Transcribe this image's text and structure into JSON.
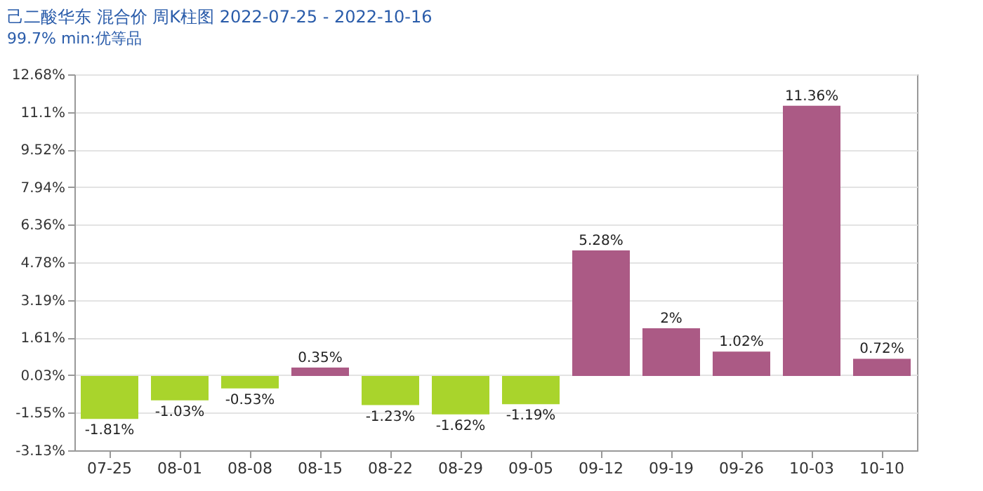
{
  "chart_data": {
    "type": "bar",
    "title": "己二酸华东 混合价 周K柱图 2022-07-25 - 2022-10-16",
    "subtitle": "99.7% min:优等品",
    "categories": [
      "07-25",
      "08-01",
      "08-08",
      "08-15",
      "08-22",
      "08-29",
      "09-05",
      "09-12",
      "09-19",
      "09-26",
      "10-03",
      "10-10"
    ],
    "values": [
      -1.81,
      -1.03,
      -0.53,
      0.35,
      -1.23,
      -1.62,
      -1.19,
      5.28,
      2,
      1.02,
      11.36,
      0.72
    ],
    "value_labels": [
      "-1.81%",
      "-1.03%",
      "-0.53%",
      "0.35%",
      "-1.23%",
      "-1.62%",
      "-1.19%",
      "5.28%",
      "2%",
      "1.02%",
      "11.36%",
      "0.72%"
    ],
    "colors": [
      "#a9d42c",
      "#a9d42c",
      "#a9d42c",
      "#ab5a85",
      "#a9d42c",
      "#a9d42c",
      "#a9d42c",
      "#ab5a85",
      "#ab5a85",
      "#ab5a85",
      "#ab5a85",
      "#ab5a85"
    ],
    "ylim": [
      -3.13,
      12.68
    ],
    "yticks": [
      {
        "value": -3.13,
        "label": "-3.13%"
      },
      {
        "value": -1.55,
        "label": "-1.55%"
      },
      {
        "value": 0.03,
        "label": "0.03%"
      },
      {
        "value": 1.61,
        "label": "1.61%"
      },
      {
        "value": 3.19,
        "label": "3.19%"
      },
      {
        "value": 4.78,
        "label": "4.78%"
      },
      {
        "value": 6.36,
        "label": "6.36%"
      },
      {
        "value": 7.94,
        "label": "7.94%"
      },
      {
        "value": 9.52,
        "label": "9.52%"
      },
      {
        "value": 11.1,
        "label": "11.1%"
      },
      {
        "value": 12.68,
        "label": "12.68%"
      }
    ],
    "grid": "y"
  }
}
